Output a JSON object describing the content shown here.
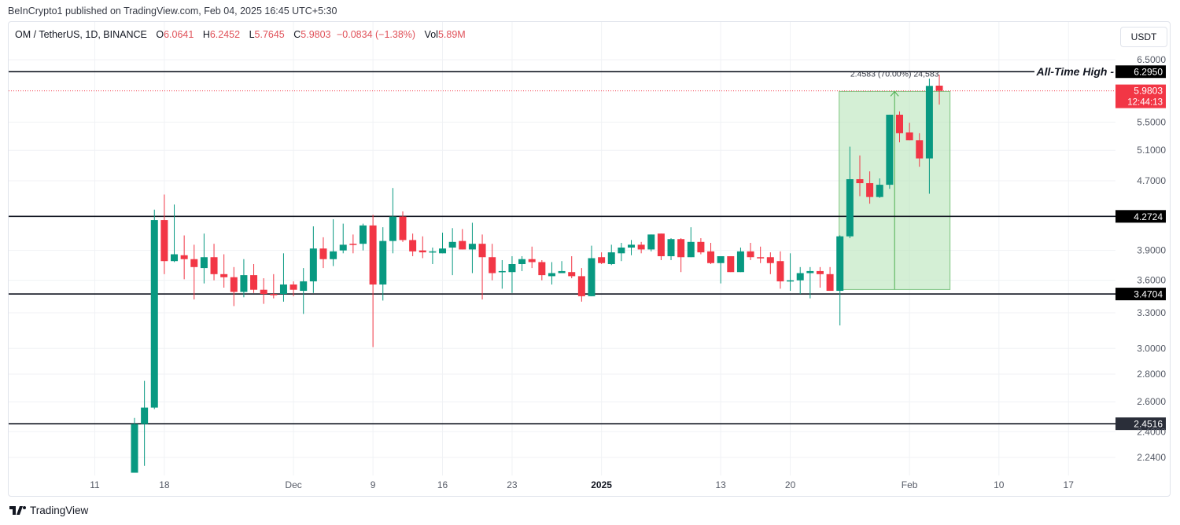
{
  "header": {
    "publisher": "BeInCrypto1 published on TradingView.com, Feb 04, 2025 16:45 UTC+5:30"
  },
  "legend": {
    "symbol": "OM / TetherUS, 1D, BINANCE",
    "o_label": "O",
    "o": "6.0641",
    "h_label": "H",
    "h": "6.2452",
    "l_label": "L",
    "l": "5.7645",
    "c_label": "C",
    "c": "5.9803",
    "change": "−0.0834 (−1.38%)",
    "vol_label": "Vol",
    "vol": "5.89M"
  },
  "currency_button": "USDT",
  "footer": {
    "brand": "TradingView"
  },
  "colors": {
    "up": "#089981",
    "down": "#f23645",
    "level": "#131722",
    "measure_fill": "#b7e4b9",
    "axis_text": "#555a66"
  },
  "chart_data": {
    "type": "candlestick",
    "title": "OM / TetherUS, 1D, BINANCE",
    "scale": "log",
    "ylim": [
      2.13,
      6.6
    ],
    "x_start": "2024-11-15",
    "interval": "1D",
    "x_ticks": [
      {
        "label": "11",
        "index": -4
      },
      {
        "label": "18",
        "index": 3
      },
      {
        "label": "Dec",
        "index": 16,
        "bold": false
      },
      {
        "label": "9",
        "index": 24
      },
      {
        "label": "16",
        "index": 31
      },
      {
        "label": "23",
        "index": 38
      },
      {
        "label": "2025",
        "index": 47,
        "bold": true
      },
      {
        "label": "13",
        "index": 59
      },
      {
        "label": "20",
        "index": 66
      },
      {
        "label": "Feb",
        "index": 78
      },
      {
        "label": "10",
        "index": 87
      },
      {
        "label": "17",
        "index": 94
      }
    ],
    "y_ticks": [
      "6.5000",
      "5.5000",
      "5.1000",
      "4.7000",
      "3.9000",
      "3.6000",
      "3.3000",
      "3.0000",
      "2.8000",
      "2.6000",
      "2.4000",
      "2.2400"
    ],
    "ohlc": [
      [
        2.15,
        2.49,
        2.15,
        2.45
      ],
      [
        2.45,
        2.75,
        2.19,
        2.56
      ],
      [
        2.56,
        4.35,
        2.55,
        4.23
      ],
      [
        4.23,
        4.53,
        3.66,
        3.79
      ],
      [
        3.79,
        4.41,
        3.78,
        3.86
      ],
      [
        3.85,
        4.06,
        3.61,
        3.81
      ],
      [
        3.81,
        3.96,
        3.42,
        3.73
      ],
      [
        3.72,
        4.08,
        3.57,
        3.83
      ],
      [
        3.83,
        3.97,
        3.6,
        3.66
      ],
      [
        3.66,
        3.86,
        3.53,
        3.63
      ],
      [
        3.63,
        3.73,
        3.36,
        3.49
      ],
      [
        3.49,
        3.81,
        3.44,
        3.65
      ],
      [
        3.65,
        3.76,
        3.48,
        3.51
      ],
      [
        3.51,
        3.62,
        3.38,
        3.47
      ],
      [
        3.47,
        3.66,
        3.43,
        3.46
      ],
      [
        3.47,
        3.87,
        3.4,
        3.56
      ],
      [
        3.56,
        3.59,
        3.45,
        3.51
      ],
      [
        3.5,
        3.72,
        3.29,
        3.59
      ],
      [
        3.59,
        4.16,
        3.48,
        3.92
      ],
      [
        3.92,
        4.04,
        3.72,
        3.81
      ],
      [
        3.81,
        4.24,
        3.74,
        3.89
      ],
      [
        3.9,
        4.19,
        3.87,
        3.96
      ],
      [
        3.97,
        4.07,
        3.87,
        3.96
      ],
      [
        3.97,
        4.19,
        3.9,
        4.17
      ],
      [
        4.17,
        4.29,
        3.01,
        3.56
      ],
      [
        3.56,
        4.15,
        3.41,
        4.0
      ],
      [
        4.0,
        4.61,
        3.87,
        4.27
      ],
      [
        4.27,
        4.33,
        3.99,
        4.01
      ],
      [
        4.01,
        4.08,
        3.84,
        3.89
      ],
      [
        3.9,
        4.05,
        3.82,
        3.88
      ],
      [
        3.88,
        3.93,
        3.76,
        3.89
      ],
      [
        3.87,
        4.09,
        3.87,
        3.92
      ],
      [
        3.93,
        4.14,
        3.65,
        3.99
      ],
      [
        4.0,
        4.13,
        3.91,
        3.91
      ],
      [
        3.91,
        4.2,
        3.67,
        3.97
      ],
      [
        3.97,
        4.07,
        3.42,
        3.83
      ],
      [
        3.83,
        3.97,
        3.6,
        3.67
      ],
      [
        3.68,
        3.8,
        3.52,
        3.69
      ],
      [
        3.68,
        3.84,
        3.48,
        3.76
      ],
      [
        3.76,
        3.84,
        3.69,
        3.81
      ],
      [
        3.81,
        3.94,
        3.72,
        3.78
      ],
      [
        3.78,
        3.8,
        3.6,
        3.65
      ],
      [
        3.64,
        3.78,
        3.56,
        3.67
      ],
      [
        3.67,
        3.79,
        3.67,
        3.69
      ],
      [
        3.68,
        3.84,
        3.62,
        3.64
      ],
      [
        3.64,
        3.72,
        3.4,
        3.45
      ],
      [
        3.45,
        3.95,
        3.45,
        3.82
      ],
      [
        3.83,
        3.88,
        3.76,
        3.77
      ],
      [
        3.76,
        3.96,
        3.75,
        3.88
      ],
      [
        3.87,
        3.98,
        3.79,
        3.93
      ],
      [
        3.93,
        4.01,
        3.85,
        3.96
      ],
      [
        3.96,
        3.99,
        3.87,
        3.91
      ],
      [
        3.91,
        4.07,
        3.89,
        4.07
      ],
      [
        4.08,
        4.08,
        3.8,
        3.84
      ],
      [
        3.84,
        4.03,
        3.8,
        4.02
      ],
      [
        4.02,
        4.03,
        3.68,
        3.83
      ],
      [
        3.83,
        4.15,
        3.83,
        3.99
      ],
      [
        3.99,
        4.03,
        3.86,
        3.88
      ],
      [
        3.89,
        3.98,
        3.76,
        3.77
      ],
      [
        3.77,
        3.84,
        3.57,
        3.84
      ],
      [
        3.84,
        3.84,
        3.68,
        3.68
      ],
      [
        3.68,
        3.93,
        3.68,
        3.89
      ],
      [
        3.89,
        3.98,
        3.8,
        3.83
      ],
      [
        3.83,
        3.94,
        3.77,
        3.82
      ],
      [
        3.83,
        3.88,
        3.66,
        3.77
      ],
      [
        3.79,
        3.89,
        3.52,
        3.59
      ],
      [
        3.59,
        3.87,
        3.5,
        3.6
      ],
      [
        3.6,
        3.73,
        3.47,
        3.67
      ],
      [
        3.67,
        3.73,
        3.43,
        3.69
      ],
      [
        3.69,
        3.73,
        3.53,
        3.66
      ],
      [
        3.66,
        3.73,
        3.5,
        3.5
      ],
      [
        3.5,
        4.06,
        3.19,
        4.05
      ],
      [
        4.05,
        5.15,
        4.03,
        4.72
      ],
      [
        4.72,
        5.03,
        4.51,
        4.67
      ],
      [
        4.67,
        4.82,
        4.42,
        4.5
      ],
      [
        4.5,
        4.73,
        4.49,
        4.65
      ],
      [
        4.65,
        5.61,
        4.6,
        5.61
      ],
      [
        5.61,
        5.66,
        5.21,
        5.34
      ],
      [
        5.35,
        5.49,
        5.24,
        5.24
      ],
      [
        5.24,
        5.34,
        4.88,
        4.99
      ],
      [
        4.99,
        6.18,
        4.54,
        6.06
      ],
      [
        6.0641,
        6.2452,
        5.7645,
        5.9803
      ]
    ],
    "levels": [
      {
        "price": 6.295,
        "label": "6.2950",
        "annotation": "All-Time High -"
      },
      {
        "price": 4.2724,
        "label": "4.2724"
      },
      {
        "price": 3.4704,
        "label": "3.4704"
      },
      {
        "price": 2.4516,
        "label": "2.4516"
      }
    ],
    "last_price": {
      "label": "5.9803",
      "price": 5.9803,
      "countdown": "12:44:13"
    },
    "measure": {
      "from_index": 71,
      "to_index": 81,
      "low": 3.512,
      "high": 5.9703,
      "label": "2.4583 (70.00%) 24,583"
    }
  }
}
